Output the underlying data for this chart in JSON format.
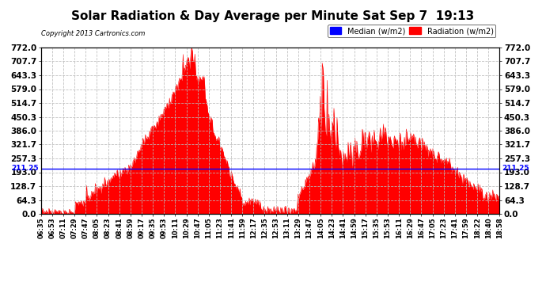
{
  "title": "Solar Radiation & Day Average per Minute Sat Sep 7  19:13",
  "copyright": "Copyright 2013 Cartronics.com",
  "ylim": [
    0.0,
    772.0
  ],
  "yticks": [
    0.0,
    64.3,
    128.7,
    193.0,
    257.3,
    321.7,
    386.0,
    450.3,
    514.7,
    579.0,
    643.3,
    707.7,
    772.0
  ],
  "median_value": 211.25,
  "median_label": "Median (w/m2)",
  "radiation_label": "Radiation (w/m2)",
  "median_color": "#0000ff",
  "radiation_fill_color": "#ff0000",
  "background_color": "#ffffff",
  "grid_color": "#bbbbbb",
  "title_fontsize": 11,
  "ytick_fontsize": 7.5,
  "xtick_fontsize": 6,
  "xtick_labels": [
    "06:35",
    "06:53",
    "07:11",
    "07:29",
    "07:47",
    "08:05",
    "08:23",
    "08:41",
    "08:59",
    "09:17",
    "09:35",
    "09:53",
    "10:11",
    "10:29",
    "10:47",
    "11:05",
    "11:23",
    "11:41",
    "11:59",
    "12:17",
    "12:35",
    "12:53",
    "13:11",
    "13:29",
    "13:47",
    "14:05",
    "14:23",
    "14:41",
    "14:59",
    "15:17",
    "15:35",
    "15:53",
    "16:11",
    "16:29",
    "16:47",
    "17:05",
    "17:23",
    "17:41",
    "17:59",
    "18:22",
    "18:40",
    "18:58"
  ]
}
